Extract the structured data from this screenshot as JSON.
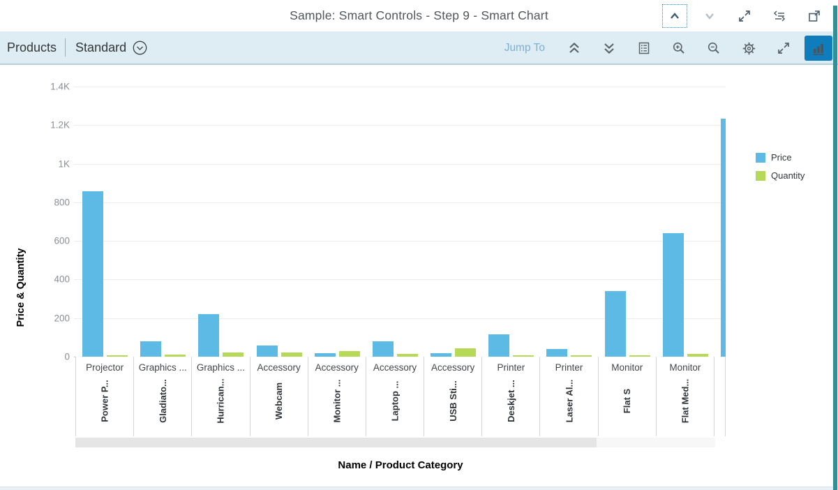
{
  "header": {
    "title": "Sample: Smart Controls - Step 9 - Smart Chart",
    "icons": [
      "chevron-up-icon",
      "chevron-down-icon",
      "fullscreen-icon",
      "show-code-icon",
      "open-in-new-window-icon"
    ]
  },
  "toolbar": {
    "products_label": "Products",
    "variant_label": "Standard",
    "variant_icon": "circle-chevron-down-icon",
    "jump_to_label": "Jump To",
    "icons": [
      "collapse-all-icon",
      "expand-all-icon",
      "legend-icon",
      "zoom-in-icon",
      "zoom-out-icon",
      "settings-gear-icon",
      "fullscreen-icon",
      "bar-chart-type-icon"
    ],
    "active_chart_type": "bar",
    "accent_color": "#0f7cbb",
    "background_color": "#ddedf3"
  },
  "chart_data": {
    "type": "bar",
    "title": "",
    "xlabel": "Name / Product Category",
    "ylabel": "Price & Quantity",
    "ylim": [
      0,
      1400
    ],
    "grid": "horizontal",
    "legend_position": "right",
    "yticks": [
      {
        "value": 0,
        "label": "0"
      },
      {
        "value": 200,
        "label": "200"
      },
      {
        "value": 400,
        "label": "400"
      },
      {
        "value": 600,
        "label": "600"
      },
      {
        "value": 800,
        "label": "800"
      },
      {
        "value": 1000,
        "label": "1K"
      },
      {
        "value": 1200,
        "label": "1.2K"
      },
      {
        "value": 1400,
        "label": "1.4K"
      }
    ],
    "legend": [
      {
        "name": "Price",
        "color": "#5cbae5"
      },
      {
        "name": "Quantity",
        "color": "#b6d957"
      }
    ],
    "categories": [
      {
        "product": "Power P...",
        "category": "Projector"
      },
      {
        "product": "Gladiato...",
        "category": "Graphics ..."
      },
      {
        "product": "Hurrican...",
        "category": "Graphics ..."
      },
      {
        "product": "Webcam",
        "category": "Accessory"
      },
      {
        "product": "Monitor ...",
        "category": "Accessory"
      },
      {
        "product": "Laptop ...",
        "category": "Accessory"
      },
      {
        "product": "USB Sti...",
        "category": "Accessory"
      },
      {
        "product": "Deskjet ...",
        "category": "Printer"
      },
      {
        "product": "Laser Al...",
        "category": "Printer"
      },
      {
        "product": "Flat S",
        "category": "Monitor"
      },
      {
        "product": "Flat Med...",
        "category": "Monitor"
      }
    ],
    "series": [
      {
        "name": "Price",
        "color": "#5cbae5",
        "values": [
          856,
          81,
          219,
          59,
          19,
          79,
          19,
          117,
          40,
          340,
          640
        ]
      },
      {
        "name": "Quantity",
        "color": "#b6d957",
        "values": [
          5,
          10,
          21,
          22,
          29,
          13,
          43,
          8,
          8,
          9,
          15
        ]
      }
    ],
    "clipped_bar": {
      "series": "Price",
      "value": 1235
    }
  }
}
